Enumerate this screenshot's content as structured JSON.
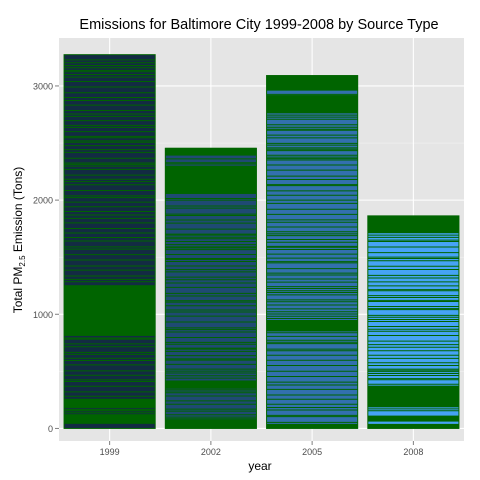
{
  "chart_data": {
    "type": "bar",
    "title": "Emissions for Baltimore City 1999-2008 by Source Type",
    "xlabel": "year",
    "ylabel_prefix": "Total PM",
    "ylabel_subscript": "2.5",
    "ylabel_suffix": " Emission (Tons)",
    "categories": [
      "1999",
      "2002",
      "2005",
      "2008"
    ],
    "values": [
      3274,
      2454,
      3091,
      1862
    ],
    "ylim": [
      -110,
      3420
    ],
    "yticks": [
      0,
      1000,
      2000,
      3000
    ],
    "grid": true,
    "stacked": true,
    "fill_colors": [
      "#132B43",
      "#1F4A73",
      "#3270AE",
      "#46A3F5"
    ],
    "segment_border_color": "#006400",
    "heavy_bands": [
      [
        [
          1030,
          1255
        ],
        [
          810,
          1065
        ],
        [
          185,
          260
        ],
        [
          40,
          120
        ]
      ],
      [
        [
          2055,
          2300
        ],
        [
          2390,
          2454
        ],
        [
          350,
          420
        ],
        [
          0,
          80
        ]
      ],
      [
        [
          2760,
          2920
        ],
        [
          2960,
          3091
        ],
        [
          850,
          950
        ],
        [
          0,
          40
        ]
      ],
      [
        [
          1710,
          1862
        ],
        [
          185,
          375
        ],
        [
          60,
          110
        ],
        [
          0,
          40
        ]
      ]
    ]
  }
}
